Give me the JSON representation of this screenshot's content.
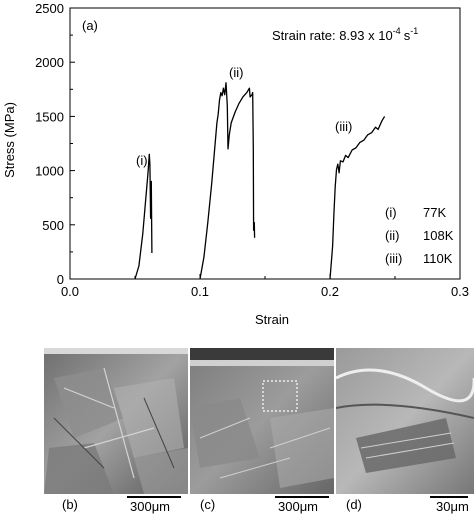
{
  "chart_data": {
    "type": "line",
    "panel_label": "(a)",
    "annotation": "Strain rate: 8.93 x 10",
    "annotation_exp": "-4",
    "annotation_unit": "s",
    "annotation_unit_exp": "-1",
    "xlabel": "Strain",
    "ylabel": "Stress (MPa)",
    "xlim": [
      0.0,
      0.3
    ],
    "ylim": [
      0,
      2500
    ],
    "x_ticks": [
      "0.0",
      "0.1",
      "0.2",
      "0.3"
    ],
    "y_ticks": [
      "0",
      "500",
      "1000",
      "1500",
      "2000",
      "2500"
    ],
    "grid": false,
    "series": [
      {
        "name": "(i)",
        "curve_label": "(i)",
        "points": [
          [
            0.05,
            0
          ],
          [
            0.053,
            120
          ],
          [
            0.056,
            420
          ],
          [
            0.058,
            700
          ],
          [
            0.06,
            980
          ],
          [
            0.061,
            1150
          ],
          [
            0.0615,
            1060
          ],
          [
            0.062,
            560
          ],
          [
            0.0625,
            900
          ],
          [
            0.063,
            240
          ]
        ]
      },
      {
        "name": "(ii)",
        "curve_label": "(ii)",
        "points": [
          [
            0.1,
            0
          ],
          [
            0.103,
            200
          ],
          [
            0.106,
            520
          ],
          [
            0.109,
            880
          ],
          [
            0.111,
            1160
          ],
          [
            0.113,
            1440
          ],
          [
            0.114,
            1520
          ],
          [
            0.115,
            1650
          ],
          [
            0.116,
            1720
          ],
          [
            0.117,
            1690
          ],
          [
            0.118,
            1760
          ],
          [
            0.119,
            1700
          ],
          [
            0.12,
            1810
          ],
          [
            0.121,
            1600
          ],
          [
            0.1215,
            1200
          ],
          [
            0.1225,
            1330
          ],
          [
            0.124,
            1440
          ],
          [
            0.127,
            1540
          ],
          [
            0.13,
            1620
          ],
          [
            0.133,
            1680
          ],
          [
            0.136,
            1720
          ],
          [
            0.138,
            1760
          ],
          [
            0.1385,
            1680
          ],
          [
            0.14,
            1700
          ],
          [
            0.1405,
            1720
          ],
          [
            0.141,
            1200
          ],
          [
            0.1412,
            450
          ],
          [
            0.1418,
            520
          ],
          [
            0.142,
            380
          ]
        ]
      },
      {
        "name": "(iii)",
        "curve_label": "(iii)",
        "points": [
          [
            0.2,
            0
          ],
          [
            0.202,
            300
          ],
          [
            0.203,
            600
          ],
          [
            0.204,
            850
          ],
          [
            0.205,
            1010
          ],
          [
            0.206,
            1060
          ],
          [
            0.207,
            980
          ],
          [
            0.208,
            1090
          ],
          [
            0.21,
            1080
          ],
          [
            0.212,
            1140
          ],
          [
            0.214,
            1120
          ],
          [
            0.217,
            1190
          ],
          [
            0.22,
            1210
          ],
          [
            0.223,
            1260
          ],
          [
            0.226,
            1280
          ],
          [
            0.229,
            1330
          ],
          [
            0.232,
            1350
          ],
          [
            0.235,
            1400
          ],
          [
            0.237,
            1380
          ],
          [
            0.24,
            1460
          ],
          [
            0.242,
            1500
          ]
        ]
      }
    ],
    "legend": [
      {
        "id": "(i)",
        "temp": "77K"
      },
      {
        "id": "(ii)",
        "temp": "108K"
      },
      {
        "id": "(iii)",
        "temp": "110K"
      }
    ]
  },
  "micrographs": [
    {
      "label": "(b)",
      "scale": "300μm"
    },
    {
      "label": "(c)",
      "scale": "300μm"
    },
    {
      "label": "(d)",
      "scale": "30μm"
    }
  ],
  "colors": {
    "line": "#000000",
    "background": "#ffffff",
    "sem_gray": "#8a8a8a"
  }
}
